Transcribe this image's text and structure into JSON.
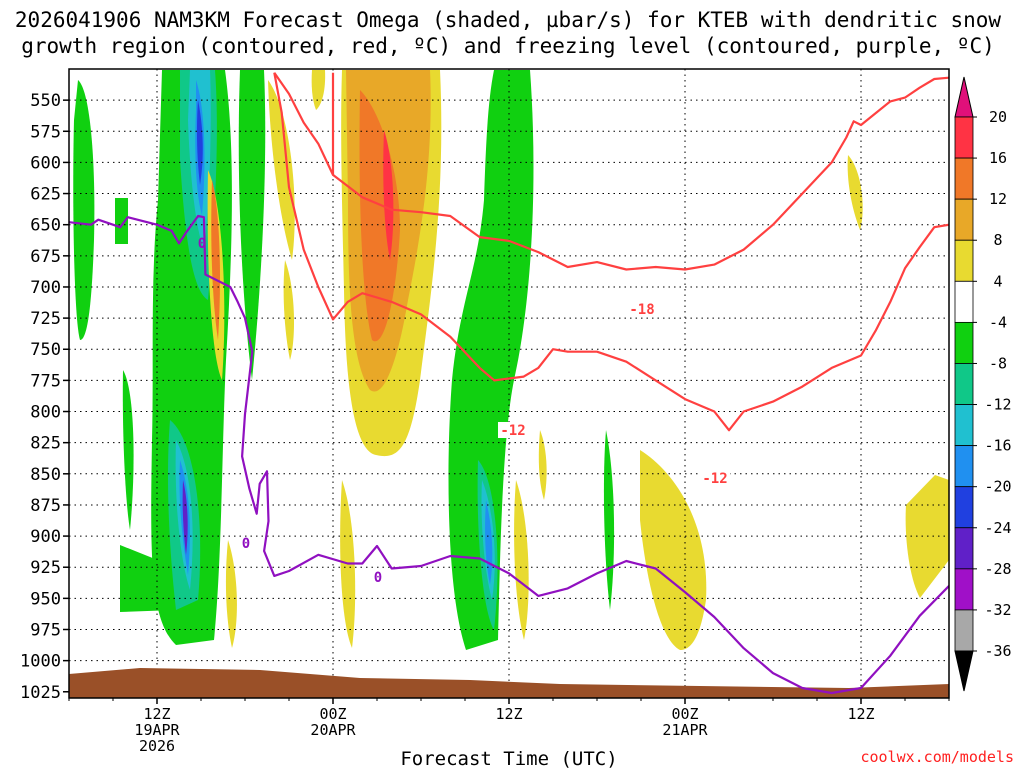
{
  "chart_data": {
    "type": "heatmap",
    "title_line1": "2026041906 NAM3KM Forecast Omega (shaded, µbar/s) for KTEB with dendritic snow",
    "title_line2": "growth region (contoured, red, ºC) and freezing level (contoured, purple, ºC)",
    "xlabel": "Forecast Time (UTC)",
    "credit": "coolwx.com/models",
    "x_range_hours": [
      0,
      60
    ],
    "y_range_hpa": [
      525,
      1030
    ],
    "y_ticks": [
      "550",
      "575",
      "600",
      "625",
      "650",
      "675",
      "700",
      "725",
      "750",
      "775",
      "800",
      "825",
      "850",
      "875",
      "900",
      "925",
      "950",
      "975",
      "1000",
      "1025"
    ],
    "x_ticks": [
      {
        "hour": 6,
        "line1": "12Z",
        "line2": "19APR",
        "line3": "2026"
      },
      {
        "hour": 18,
        "line1": "00Z",
        "line2": "20APR",
        "line3": ""
      },
      {
        "hour": 30,
        "line1": "12Z",
        "line2": "",
        "line3": ""
      },
      {
        "hour": 42,
        "line1": "00Z",
        "line2": "21APR",
        "line3": ""
      },
      {
        "hour": 54,
        "line1": "12Z",
        "line2": "",
        "line3": ""
      }
    ],
    "colorbar": {
      "labels": [
        "20",
        "16",
        "12",
        "8",
        "4",
        "-4",
        "-8",
        "-12",
        "-16",
        "-20",
        "-24",
        "-28",
        "-32",
        "-36"
      ],
      "colors": [
        "#ff3344",
        "#f07828",
        "#e8a828",
        "#e8da30",
        "#ffffff",
        "#10d010",
        "#10c888",
        "#20c0d0",
        "#2090f0",
        "#2040e0",
        "#6020c8",
        "#a010c8",
        "#a8a8a8"
      ],
      "top_arrow_color": "#e0107a",
      "bottom_arrow_color": "#000000"
    },
    "contour_labels": {
      "dgz_upper": "-18",
      "dgz_lower_1": "-12",
      "dgz_lower_2": "-12",
      "freezing_1": "0",
      "freezing_2": "0",
      "freezing_3": "0"
    },
    "series": [
      {
        "name": "Freezing level (0 °C)",
        "color": "#9010c0",
        "points": [
          [
            0,
            648
          ],
          [
            1.5,
            650
          ],
          [
            2,
            646
          ],
          [
            3.5,
            652
          ],
          [
            4,
            644
          ],
          [
            6,
            650
          ],
          [
            7,
            655
          ],
          [
            7.5,
            665
          ],
          [
            8,
            656
          ],
          [
            8.8,
            643
          ],
          [
            9.2,
            644
          ],
          [
            9.3,
            690
          ],
          [
            11,
            700
          ],
          [
            11.5,
            712
          ],
          [
            12,
            725
          ],
          [
            12.5,
            752
          ],
          [
            12,
            802
          ],
          [
            11.8,
            836
          ],
          [
            12.3,
            862
          ],
          [
            12.8,
            882
          ],
          [
            13,
            858
          ],
          [
            13.5,
            848
          ],
          [
            13.6,
            888
          ],
          [
            13.3,
            912
          ],
          [
            14,
            932
          ],
          [
            15,
            928
          ],
          [
            17,
            915
          ],
          [
            19,
            922
          ],
          [
            20,
            922
          ],
          [
            21,
            908
          ],
          [
            22,
            926
          ],
          [
            24,
            924
          ],
          [
            26,
            916
          ],
          [
            28,
            918
          ],
          [
            30,
            930
          ],
          [
            32,
            948
          ],
          [
            34,
            942
          ],
          [
            36,
            930
          ],
          [
            38,
            920
          ],
          [
            40,
            926
          ],
          [
            42,
            945
          ],
          [
            44,
            965
          ],
          [
            46,
            990
          ],
          [
            48,
            1010
          ],
          [
            50,
            1022
          ],
          [
            52,
            1026
          ],
          [
            54,
            1022
          ],
          [
            56,
            996
          ],
          [
            58,
            964
          ],
          [
            60,
            940
          ]
        ]
      },
      {
        "name": "DGZ upper (-18 °C)",
        "color": "#ff4040",
        "points": [
          [
            14,
            528
          ],
          [
            15,
            545
          ],
          [
            16,
            568
          ],
          [
            17,
            585
          ],
          [
            18,
            610
          ],
          [
            18,
            568
          ],
          [
            18,
            528
          ]
        ]
      },
      {
        "name": "DGZ upper cont. (-18 °C)",
        "color": "#ff4040",
        "points": [
          [
            18,
            610
          ],
          [
            20,
            628
          ],
          [
            22,
            638
          ],
          [
            24,
            640
          ],
          [
            26,
            643
          ],
          [
            28,
            660
          ],
          [
            30,
            663
          ],
          [
            32,
            672
          ],
          [
            34,
            684
          ],
          [
            36,
            680
          ],
          [
            38,
            686
          ],
          [
            40,
            684
          ],
          [
            42,
            686
          ],
          [
            44,
            682
          ],
          [
            46,
            670
          ],
          [
            48,
            650
          ],
          [
            50,
            625
          ],
          [
            52,
            600
          ],
          [
            53,
            580
          ],
          [
            53.5,
            567
          ],
          [
            54,
            570
          ],
          [
            56,
            551
          ],
          [
            57,
            548
          ],
          [
            58,
            540
          ],
          [
            59,
            533
          ],
          [
            60,
            532
          ]
        ]
      },
      {
        "name": "DGZ lower (-12 °C)",
        "color": "#ff4040",
        "points": [
          [
            14,
            528
          ],
          [
            14.5,
            560
          ],
          [
            15,
            620
          ],
          [
            16,
            670
          ],
          [
            17,
            700
          ],
          [
            18,
            726
          ],
          [
            19,
            712
          ],
          [
            20,
            705
          ],
          [
            22,
            712
          ],
          [
            24,
            722
          ],
          [
            26,
            740
          ],
          [
            28,
            765
          ],
          [
            29,
            775
          ],
          [
            31,
            772
          ],
          [
            32,
            765
          ],
          [
            33,
            750
          ],
          [
            34,
            752
          ],
          [
            36,
            752
          ],
          [
            38,
            760
          ],
          [
            40,
            775
          ],
          [
            42,
            790
          ],
          [
            44,
            800
          ],
          [
            45,
            815
          ],
          [
            46,
            800
          ],
          [
            48,
            792
          ],
          [
            50,
            780
          ],
          [
            52,
            765
          ],
          [
            54,
            755
          ],
          [
            55,
            735
          ],
          [
            56,
            712
          ],
          [
            57,
            685
          ],
          [
            58,
            668
          ],
          [
            59,
            652
          ],
          [
            60,
            650
          ]
        ]
      }
    ]
  }
}
